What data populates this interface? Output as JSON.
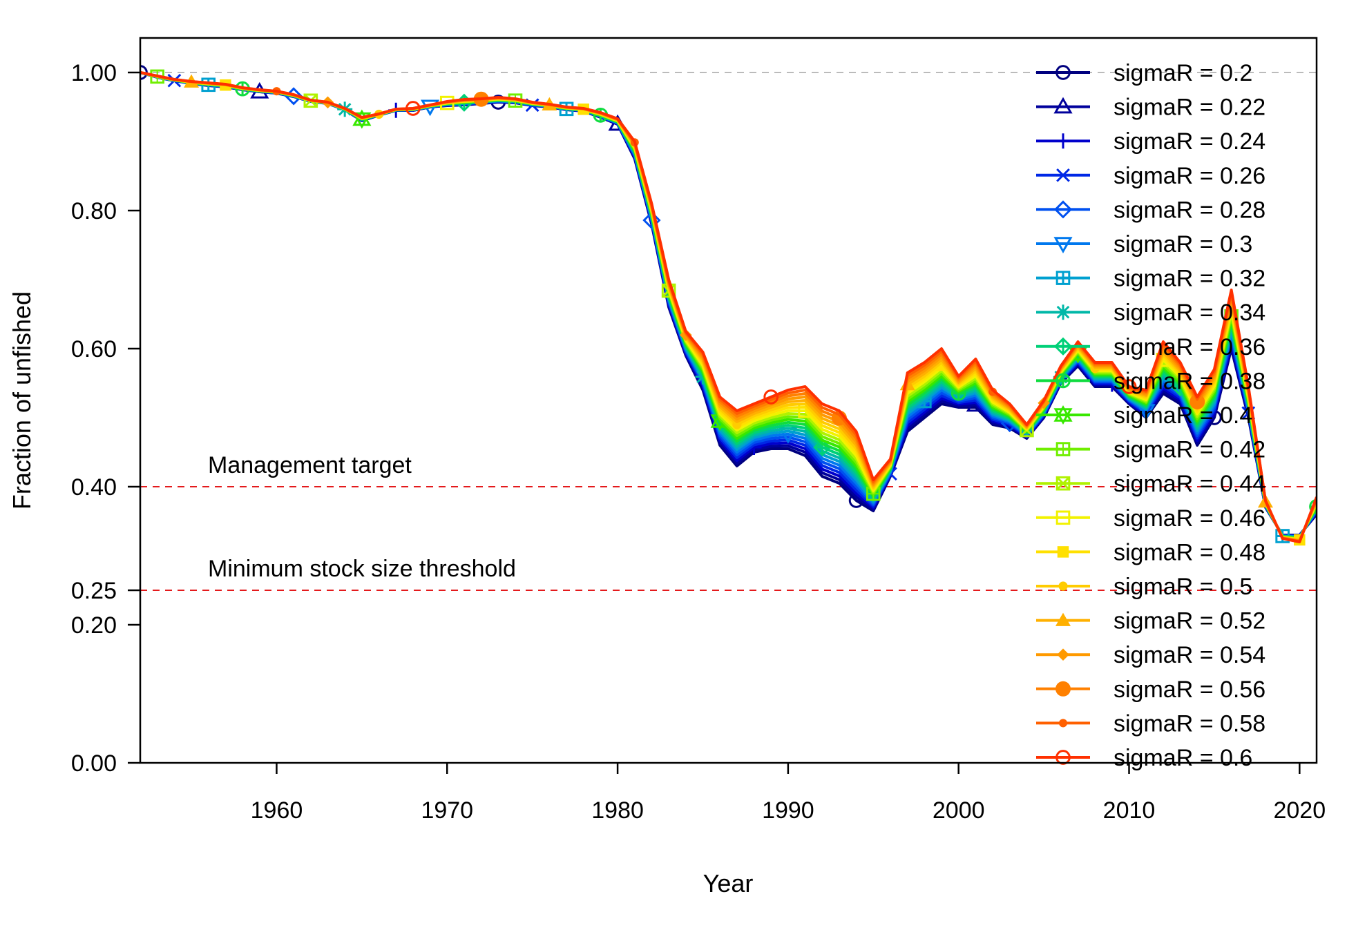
{
  "chart_data": {
    "type": "line",
    "title": "",
    "xlabel": "Year",
    "ylabel": "Fraction of unfished",
    "xlim": [
      1952,
      2021
    ],
    "ylim": [
      0,
      1.05
    ],
    "x_ticks": [
      1960,
      1970,
      1980,
      1990,
      2000,
      2010,
      2020
    ],
    "x_tick_labels": [
      "1960",
      "1970",
      "1980",
      "1990",
      "2000",
      "2010",
      "2020"
    ],
    "y_ticks": [
      0,
      0.2,
      0.25,
      0.4,
      0.6,
      0.8,
      1.0
    ],
    "y_tick_labels": [
      "0.00",
      "0.20",
      "0.25",
      "0.40",
      "0.60",
      "0.80",
      "1.00"
    ],
    "grid": false,
    "legend_position": "top-right",
    "reference_lines": [
      {
        "y": 1.0,
        "color": "#bbbbbb",
        "style": "dashed",
        "label": ""
      },
      {
        "y": 0.4,
        "color": "#e41a1c",
        "style": "dashed",
        "label": "Management target"
      },
      {
        "y": 0.25,
        "color": "#e41a1c",
        "style": "dashed",
        "label": "Minimum stock size threshold"
      }
    ],
    "x": [
      1952,
      1953,
      1954,
      1955,
      1956,
      1957,
      1958,
      1959,
      1960,
      1961,
      1962,
      1963,
      1964,
      1965,
      1966,
      1967,
      1968,
      1969,
      1970,
      1971,
      1972,
      1973,
      1974,
      1975,
      1976,
      1977,
      1978,
      1979,
      1980,
      1981,
      1982,
      1983,
      1984,
      1985,
      1986,
      1987,
      1988,
      1989,
      1990,
      1991,
      1992,
      1993,
      1994,
      1995,
      1996,
      1997,
      1998,
      1999,
      2000,
      2001,
      2002,
      2003,
      2004,
      2005,
      2006,
      2007,
      2008,
      2009,
      2010,
      2011,
      2012,
      2013,
      2014,
      2015,
      2016,
      2017,
      2018,
      2019,
      2020,
      2021
    ],
    "base_values": [
      1.0,
      0.993,
      0.988,
      0.984,
      0.981,
      0.979,
      0.975,
      0.972,
      0.97,
      0.965,
      0.958,
      0.955,
      0.946,
      0.93,
      0.938,
      0.945,
      0.945,
      0.95,
      0.952,
      0.953,
      0.955,
      0.957,
      0.956,
      0.952,
      0.95,
      0.946,
      0.944,
      0.935,
      0.925,
      0.875,
      0.78,
      0.66,
      0.59,
      0.54,
      0.46,
      0.43,
      0.45,
      0.455,
      0.455,
      0.445,
      0.415,
      0.405,
      0.38,
      0.365,
      0.415,
      0.48,
      0.5,
      0.52,
      0.515,
      0.515,
      0.49,
      0.485,
      0.47,
      0.5,
      0.55,
      0.575,
      0.545,
      0.545,
      0.52,
      0.5,
      0.535,
      0.52,
      0.46,
      0.5,
      0.6,
      0.5,
      0.37,
      0.33,
      0.33,
      0.36
    ],
    "high_values": [
      1.0,
      0.995,
      0.99,
      0.987,
      0.985,
      0.983,
      0.978,
      0.975,
      0.973,
      0.968,
      0.96,
      0.957,
      0.948,
      0.935,
      0.94,
      0.947,
      0.948,
      0.953,
      0.958,
      0.961,
      0.962,
      0.964,
      0.962,
      0.957,
      0.954,
      0.95,
      0.948,
      0.942,
      0.933,
      0.9,
      0.81,
      0.7,
      0.625,
      0.595,
      0.53,
      0.51,
      0.52,
      0.53,
      0.54,
      0.545,
      0.52,
      0.51,
      0.48,
      0.41,
      0.44,
      0.565,
      0.58,
      0.6,
      0.56,
      0.585,
      0.54,
      0.52,
      0.49,
      0.525,
      0.575,
      0.61,
      0.58,
      0.58,
      0.545,
      0.54,
      0.61,
      0.58,
      0.53,
      0.57,
      0.685,
      0.545,
      0.38,
      0.325,
      0.32,
      0.385
    ],
    "marker_offsets": [
      0,
      7,
      15,
      2,
      9,
      17,
      4,
      12,
      19,
      6,
      13,
      1,
      10,
      18,
      5,
      14,
      3,
      11,
      20,
      8,
      16
    ],
    "series": [
      {
        "name": "sigmaR = 0.2",
        "color": "#00007f",
        "marker": "circle-open"
      },
      {
        "name": "sigmaR = 0.22",
        "color": "#00009c",
        "marker": "triangle-open"
      },
      {
        "name": "sigmaR = 0.24",
        "color": "#0000cc",
        "marker": "plus"
      },
      {
        "name": "sigmaR = 0.26",
        "color": "#0028e6",
        "marker": "cross"
      },
      {
        "name": "sigmaR = 0.28",
        "color": "#0050f0",
        "marker": "diamond-open"
      },
      {
        "name": "sigmaR = 0.3",
        "color": "#0078ee",
        "marker": "triangle-down-open"
      },
      {
        "name": "sigmaR = 0.32",
        "color": "#00a0d0",
        "marker": "square-plus"
      },
      {
        "name": "sigmaR = 0.34",
        "color": "#00b8a8",
        "marker": "asterisk"
      },
      {
        "name": "sigmaR = 0.36",
        "color": "#00d078",
        "marker": "diamond-plus"
      },
      {
        "name": "sigmaR = 0.38",
        "color": "#10dc40",
        "marker": "circle-plus"
      },
      {
        "name": "sigmaR = 0.4",
        "color": "#38e800",
        "marker": "star-david"
      },
      {
        "name": "sigmaR = 0.42",
        "color": "#70ee00",
        "marker": "square-grid"
      },
      {
        "name": "sigmaR = 0.44",
        "color": "#b0f200",
        "marker": "square-cross"
      },
      {
        "name": "sigmaR = 0.46",
        "color": "#f2f200",
        "marker": "square-open"
      },
      {
        "name": "sigmaR = 0.48",
        "color": "#ffe000",
        "marker": "square"
      },
      {
        "name": "sigmaR = 0.5",
        "color": "#ffcc00",
        "marker": "circle-small"
      },
      {
        "name": "sigmaR = 0.52",
        "color": "#ffb000",
        "marker": "triangle"
      },
      {
        "name": "sigmaR = 0.54",
        "color": "#ff9a00",
        "marker": "diamond"
      },
      {
        "name": "sigmaR = 0.56",
        "color": "#ff8000",
        "marker": "circle"
      },
      {
        "name": "sigmaR = 0.58",
        "color": "#ff6000",
        "marker": "dot"
      },
      {
        "name": "sigmaR = 0.6",
        "color": "#ff3000",
        "marker": "circle-open"
      }
    ]
  }
}
